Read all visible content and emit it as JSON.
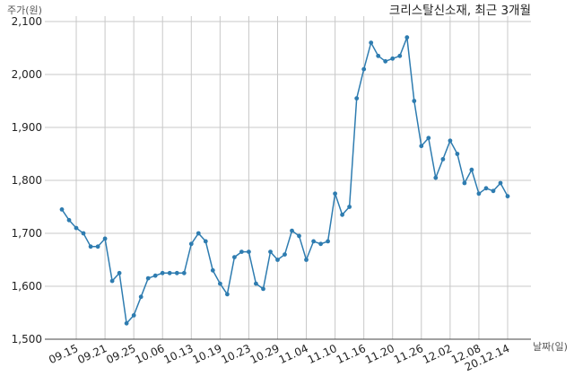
{
  "chart_data": {
    "type": "line",
    "title": "크리스탈신소재, 최근 3개월",
    "ylabel": "주가(원)",
    "xlabel": "날짜(일)",
    "ylim": [
      1500,
      2100
    ],
    "yticks": [
      1500,
      1600,
      1700,
      1800,
      1900,
      2000,
      2100
    ],
    "ytick_labels": [
      "1,500",
      "1,600",
      "1,700",
      "1,800",
      "1,900",
      "2,000",
      "2,100"
    ],
    "xtick_labels": [
      "09.15",
      "09.21",
      "09.25",
      "10.06",
      "10.13",
      "10.19",
      "10.23",
      "10.29",
      "11.04",
      "11.10",
      "11.16",
      "11.20",
      "11.26",
      "12.02",
      "12.08",
      "20.12.14"
    ],
    "xtick_index": [
      2,
      6,
      10,
      14,
      18,
      22,
      26,
      30,
      34,
      38,
      42,
      46,
      50,
      54,
      58,
      62
    ],
    "grid": true,
    "color": "#2e7cb0",
    "values": [
      1745,
      1725,
      1710,
      1700,
      1675,
      1675,
      1690,
      1610,
      1625,
      1530,
      1545,
      1580,
      1615,
      1620,
      1625,
      1625,
      1625,
      1625,
      1680,
      1700,
      1685,
      1630,
      1605,
      1585,
      1655,
      1665,
      1665,
      1605,
      1595,
      1665,
      1650,
      1660,
      1705,
      1695,
      1650,
      1685,
      1680,
      1685,
      1775,
      1735,
      1750,
      1955,
      2010,
      2060,
      2035,
      2025,
      2030,
      2035,
      2070,
      1950,
      1865,
      1880,
      1805,
      1840,
      1875,
      1850,
      1795,
      1820,
      1775,
      1785,
      1780,
      1795,
      1770
    ]
  }
}
